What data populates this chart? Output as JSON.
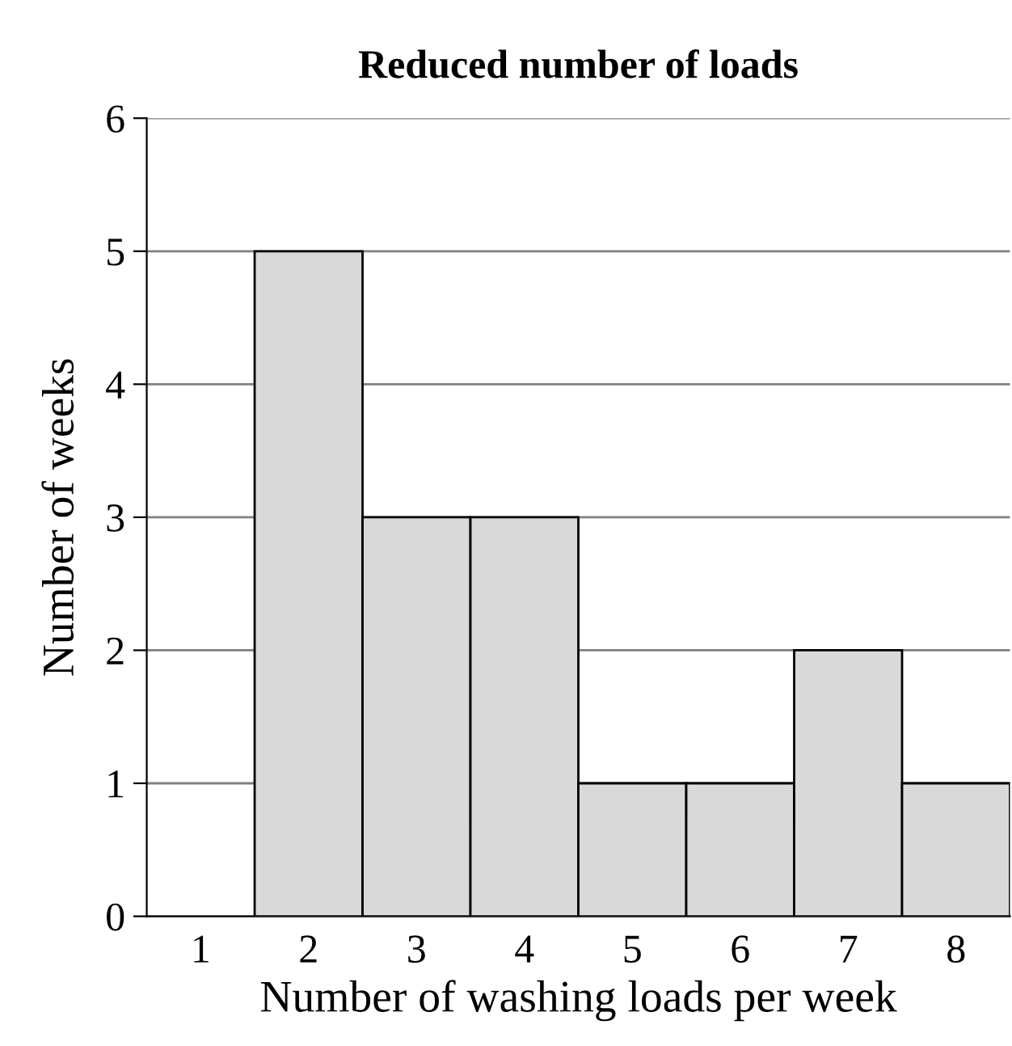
{
  "chart_data": {
    "type": "bar",
    "title": "Reduced number of loads",
    "xlabel": "Number of washing loads per week",
    "ylabel": "Number of weeks",
    "categories": [
      "1",
      "2",
      "3",
      "4",
      "5",
      "6",
      "7",
      "8"
    ],
    "values": [
      0,
      5,
      3,
      3,
      1,
      1,
      2,
      1
    ],
    "color": "#d9d9d9",
    "ylim": [
      0,
      6
    ],
    "yticks": [
      0,
      1,
      2,
      3,
      4,
      5,
      6
    ],
    "grid": "y",
    "legend": false
  }
}
